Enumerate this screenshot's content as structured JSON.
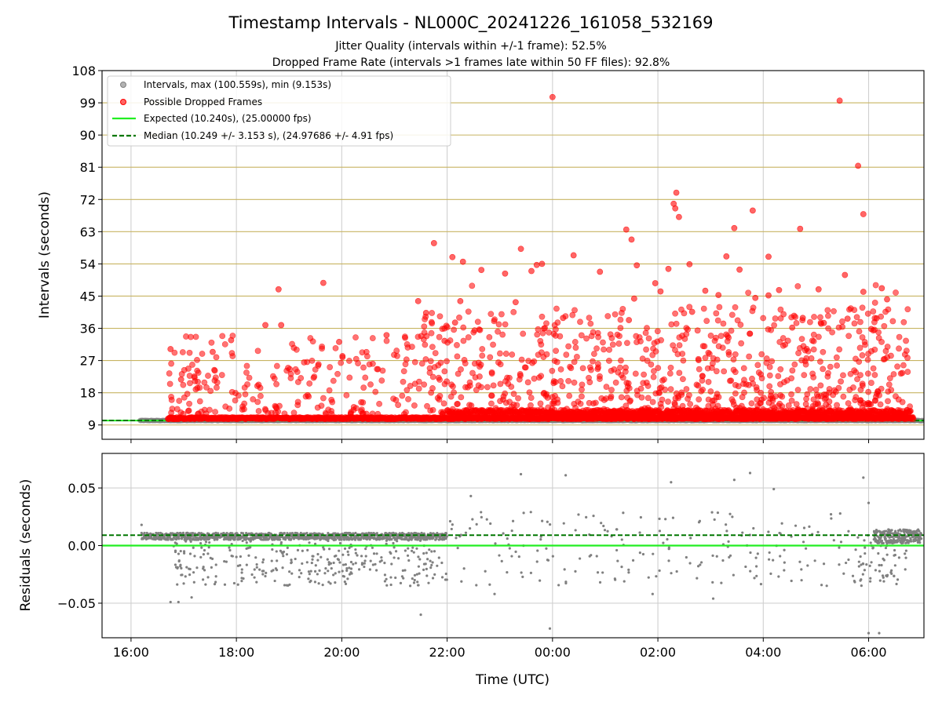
{
  "figure": {
    "title": "Timestamp Intervals - NL000C_20241226_161058_532169",
    "subtitle_lines": [
      "Jitter Quality (intervals within +/-1 frame): 52.5%",
      "Dropped Frame Rate (intervals >1 frames late within 50 FF files): 92.8%"
    ]
  },
  "chart_data": [
    {
      "type": "scatter",
      "panel": "top",
      "ylabel": "Intervals (seconds)",
      "ylim": [
        5,
        108
      ],
      "yticks": [
        9,
        18,
        27,
        36,
        45,
        54,
        63,
        72,
        81,
        90,
        99,
        108
      ],
      "x_unit": "hours since 16:00 UTC on 2024-12-26",
      "xlim": [
        -0.55,
        15.05
      ],
      "xticks": [
        0,
        2,
        4,
        6,
        8,
        10,
        12,
        14
      ],
      "xtick_labels": [
        "16:00",
        "18:00",
        "20:00",
        "22:00",
        "00:00",
        "02:00",
        "04:00",
        "06:00"
      ],
      "grid": "vertical gridlines at x ticks, horizontal olive lines at y ticks from 9 to 99",
      "legend_position": "top-left",
      "hlines": [
        {
          "name": "Expected (10.240s), (25.00000 fps)",
          "y": 10.24,
          "style": "solid",
          "color": "#22ee22"
        },
        {
          "name": "Median (10.249 +/- 3.153 s), (24.97686 +/- 4.91 fps)",
          "y": 10.249,
          "style": "dashed",
          "color": "#007700"
        }
      ],
      "series": [
        {
          "name": "Intervals, max (100.559s), min (9.153s)",
          "color": "#808080",
          "baseline": {
            "y": 10.24,
            "x_start": 0.17,
            "x_end": 15.05
          },
          "note": "dense band of points at ~10.24s across whole time range"
        },
        {
          "name": "Possible Dropped Frames",
          "color": "#ff0000",
          "baseline": {
            "y": 10.8,
            "x_start": 0.7,
            "x_end": 14.85
          },
          "points": [
            [
              8.0,
              100.6
            ],
            [
              13.45,
              99.6
            ],
            [
              13.8,
              81.4
            ],
            [
              13.9,
              67.9
            ],
            [
              10.35,
              73.9
            ],
            [
              10.3,
              70.8
            ],
            [
              10.33,
              69.5
            ],
            [
              10.4,
              67.1
            ],
            [
              11.8,
              68.9
            ],
            [
              11.45,
              64.0
            ],
            [
              12.7,
              63.8
            ],
            [
              9.4,
              63.6
            ],
            [
              9.5,
              60.8
            ],
            [
              5.75,
              59.8
            ],
            [
              10.6,
              53.9
            ],
            [
              9.6,
              53.6
            ],
            [
              6.3,
              54.6
            ],
            [
              6.1,
              55.9
            ],
            [
              7.4,
              58.2
            ],
            [
              12.1,
              56.0
            ],
            [
              11.3,
              56.1
            ],
            [
              13.55,
              50.9
            ],
            [
              8.4,
              56.4
            ],
            [
              10.2,
              52.6
            ],
            [
              11.55,
              52.4
            ],
            [
              8.9,
              51.8
            ],
            [
              7.1,
              51.3
            ],
            [
              6.65,
              52.3
            ],
            [
              7.6,
              52.0
            ],
            [
              7.7,
              53.7
            ],
            [
              7.8,
              54.0
            ],
            [
              10.05,
              46.3
            ],
            [
              9.95,
              48.6
            ],
            [
              11.85,
              44.5
            ],
            [
              12.3,
              46.7
            ],
            [
              13.05,
              46.9
            ],
            [
              13.9,
              46.2
            ],
            [
              14.35,
              44.1
            ],
            [
              14.25,
              47.2
            ],
            [
              3.65,
              48.7
            ],
            [
              2.8,
              46.9
            ],
            [
              5.45,
              43.6
            ],
            [
              6.25,
              43.6
            ],
            [
              7.3,
              43.3
            ],
            [
              9.55,
              44.3
            ],
            [
              11.15,
              45.3
            ],
            [
              12.1,
              45.2
            ],
            [
              10.9,
              46.5
            ],
            [
              2.85,
              36.9
            ],
            [
              2.55,
              36.9
            ],
            [
              1.9,
              32.7
            ],
            [
              0.75,
              30.2
            ],
            [
              1.55,
              29.4
            ],
            [
              4.85,
              34.1
            ],
            [
              5.95,
              32.5
            ],
            [
              3.95,
              32.2
            ],
            [
              13.6,
              38.7
            ],
            [
              12.75,
              38.9
            ],
            [
              14.15,
              38.8
            ],
            [
              0.95,
              21.7
            ],
            [
              5.6,
              40.3
            ],
            [
              6.15,
              37.6
            ],
            [
              8.2,
              38.9
            ],
            [
              9.45,
              38.3
            ],
            [
              10.65,
              40.6
            ],
            [
              12.55,
              36.2
            ],
            [
              13.15,
              37.5
            ],
            [
              14.05,
              35.8
            ]
          ],
          "note": "many hundreds of additional points scattered between ~11 and ~35 s; density rises after 22:00"
        }
      ]
    },
    {
      "type": "scatter",
      "panel": "bottom",
      "ylabel": "Residuals (seconds)",
      "xlabel": "Time (UTC)",
      "ylim": [
        -0.08,
        0.08
      ],
      "yticks": [
        -0.05,
        0.0,
        0.05
      ],
      "ytick_labels": [
        "−0.05",
        "0.00",
        "0.05"
      ],
      "xlim": [
        -0.55,
        15.05
      ],
      "xticks": [
        0,
        2,
        4,
        6,
        8,
        10,
        12,
        14
      ],
      "xtick_labels": [
        "16:00",
        "18:00",
        "20:00",
        "22:00",
        "00:00",
        "02:00",
        "04:00",
        "06:00"
      ],
      "grid": "on",
      "hlines": [
        {
          "y": 0.0,
          "style": "solid",
          "color": "#22ee22"
        },
        {
          "y": 0.009,
          "style": "dashed",
          "color": "#007700"
        }
      ],
      "series": [
        {
          "color": "#808080",
          "band": {
            "y": 0.008,
            "x_start": 0.2,
            "x_end": 6.0
          },
          "points": [
            [
              7.4,
              0.062
            ],
            [
              8.25,
              0.061
            ],
            [
              11.75,
              0.063
            ],
            [
              13.9,
              0.059
            ],
            [
              11.45,
              0.057
            ],
            [
              10.25,
              0.055
            ],
            [
              12.2,
              0.049
            ],
            [
              14.0,
              0.037
            ],
            [
              6.45,
              0.043
            ],
            [
              7.95,
              -0.072
            ],
            [
              14.0,
              -0.076
            ],
            [
              14.2,
              -0.076
            ],
            [
              5.5,
              -0.06
            ],
            [
              6.9,
              -0.042
            ],
            [
              11.05,
              -0.046
            ],
            [
              9.9,
              -0.042
            ],
            [
              1.15,
              -0.045
            ],
            [
              0.75,
              -0.049
            ],
            [
              0.9,
              -0.049
            ],
            [
              0.2,
              0.018
            ]
          ],
          "note": "hundreds more points scattered mainly between -0.04 and 0.02"
        }
      ]
    }
  ]
}
